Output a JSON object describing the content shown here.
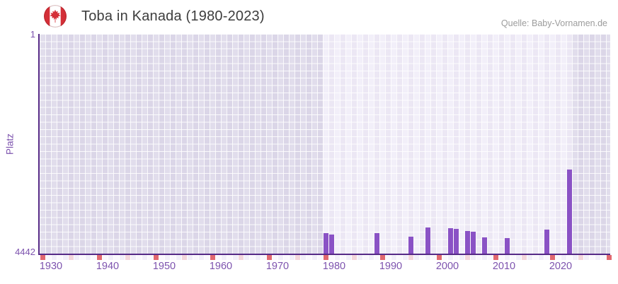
{
  "header": {
    "title": "Toba in Kanada (1980-2023)",
    "source": "Quelle: Baby-Vornamen.de",
    "flag_icon": "canada-flag-icon"
  },
  "chart_data": {
    "type": "bar",
    "title": "Toba in Kanada (1980-2023)",
    "source": "Quelle: Baby-Vornamen.de",
    "ylabel": "Platz",
    "y_axis_inverted": true,
    "ylim": [
      1,
      4442
    ],
    "y_ticks": [
      "1",
      "4442"
    ],
    "x_domain": [
      1928,
      2029
    ],
    "x_tick_labels": [
      "1930",
      "1940",
      "1950",
      "1960",
      "1970",
      "1980",
      "1990",
      "2000",
      "2010",
      "2020"
    ],
    "x_tick_years": [
      1930,
      1940,
      1950,
      1960,
      1970,
      1980,
      1990,
      2000,
      2010,
      2020
    ],
    "highlight_range": [
      1978,
      2022
    ],
    "grid": true,
    "legend": false,
    "series": [
      {
        "name": "Platz",
        "points": [
          {
            "year": 1978,
            "rank": 4035
          },
          {
            "year": 1979,
            "rank": 4050
          },
          {
            "year": 1987,
            "rank": 4030
          },
          {
            "year": 1993,
            "rank": 4100
          },
          {
            "year": 1996,
            "rank": 3915
          },
          {
            "year": 2000,
            "rank": 3930
          },
          {
            "year": 2001,
            "rank": 3945
          },
          {
            "year": 2003,
            "rank": 3985
          },
          {
            "year": 2004,
            "rank": 4005
          },
          {
            "year": 2006,
            "rank": 4115
          },
          {
            "year": 2010,
            "rank": 4130
          },
          {
            "year": 2017,
            "rank": 3960
          },
          {
            "year": 2021,
            "rank": 2745
          }
        ]
      }
    ],
    "strip_markers": {
      "red_years": [
        1928,
        1938,
        1948,
        1958,
        1968,
        1978,
        1988,
        1998,
        2008,
        2018,
        2028
      ],
      "pink_years": [
        1933,
        1943,
        1953,
        1963,
        1973,
        1983,
        1993,
        2003,
        2013,
        2023
      ]
    },
    "colors": {
      "bar": "#8a52c5",
      "axis_line": "#562a87",
      "plot_bg_highlight": "#f2eff9",
      "plot_bg_dim": "#e1ddec",
      "tick_label": "#7d53ae",
      "strip_red": "#e1686f",
      "strip_pink": "#f3d6dc",
      "strip_base_even": "#f2eff9",
      "strip_base_odd": "#faf8fd",
      "title_text": "#3d3d3d",
      "source_text": "#9c9c9c",
      "flag_red": "#d42f38"
    }
  }
}
